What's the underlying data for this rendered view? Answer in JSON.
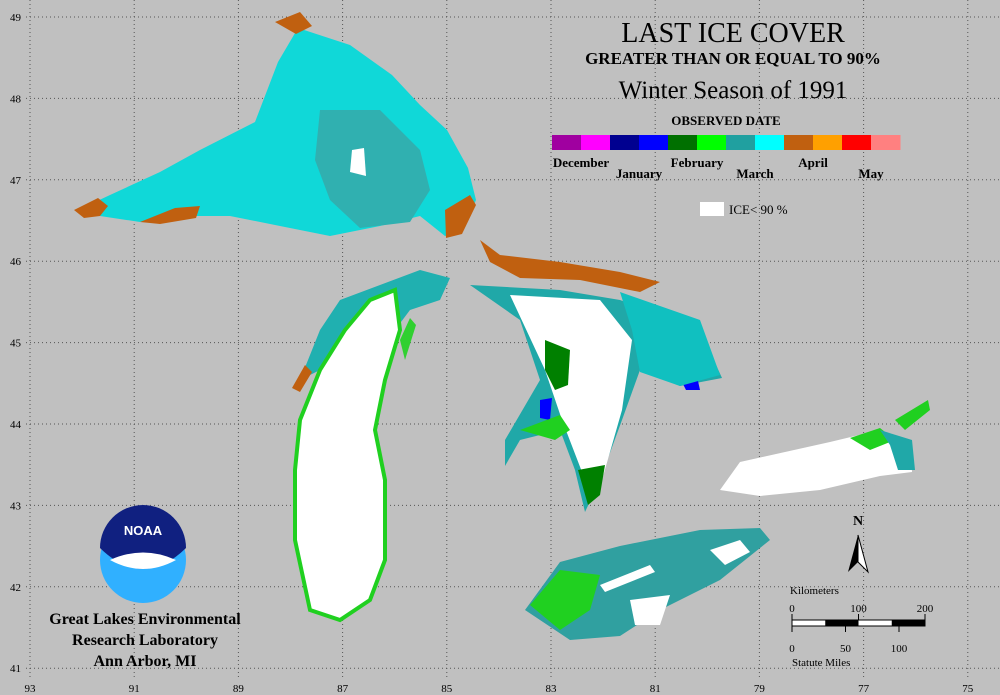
{
  "title": {
    "line1": "LAST ICE COVER",
    "line2": "GREATER THAN OR EQUAL TO 90%",
    "line3": "Winter Season of 1991"
  },
  "legend": {
    "heading": "OBSERVED DATE",
    "months": [
      {
        "name": "December",
        "colors": [
          "#a000a0",
          "#ff00ff"
        ]
      },
      {
        "name": "January",
        "colors": [
          "#000090",
          "#0000ff"
        ]
      },
      {
        "name": "February",
        "colors": [
          "#007000",
          "#00ff00"
        ]
      },
      {
        "name": "March",
        "colors": [
          "#20a0a0",
          "#00ffff"
        ]
      },
      {
        "name": "April",
        "colors": [
          "#c06010",
          "#ffa000"
        ]
      },
      {
        "name": "May",
        "colors": [
          "#ff0000",
          "#ff8080"
        ]
      }
    ],
    "ice_label": "ICE< 90 %",
    "ice_color": "#ffffff"
  },
  "map": {
    "longitudes": [
      93,
      91,
      89,
      87,
      85,
      83,
      81,
      79,
      77,
      75
    ],
    "latitudes": [
      49,
      48,
      47,
      46,
      45,
      44,
      43,
      42,
      41
    ]
  },
  "scale": {
    "km_label": "Kilometers",
    "km_ticks": [
      0,
      100,
      200
    ],
    "mi_ticks": [
      0,
      50,
      100
    ],
    "mi_label": "Statute Miles"
  },
  "north": "N",
  "logo": "NOAA",
  "credit": [
    "Great Lakes Environmental",
    "Research Laboratory",
    "Ann Arbor, MI"
  ]
}
